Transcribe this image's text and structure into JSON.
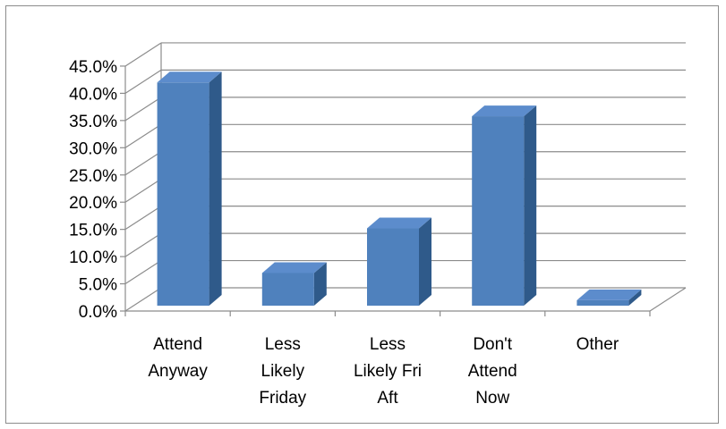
{
  "chart_data": {
    "type": "bar",
    "style": "3d-column",
    "categories": [
      [
        "Attend",
        "Anyway"
      ],
      [
        "Less",
        "Likely",
        "Friday"
      ],
      [
        "Less",
        "Likely Fri",
        "Aft"
      ],
      [
        "Don't",
        "Attend",
        "Now"
      ],
      [
        "Other"
      ]
    ],
    "values": [
      41.0,
      6.0,
      14.2,
      34.8,
      1.0
    ],
    "ylim": [
      0,
      45
    ],
    "ytick_step": 5,
    "y_tick_labels": [
      "0.0%",
      "5.0%",
      "10.0%",
      "15.0%",
      "20.0%",
      "25.0%",
      "30.0%",
      "35.0%",
      "40.0%",
      "45.0%"
    ],
    "grid": true,
    "legend": false,
    "title": "",
    "xlabel": "",
    "ylabel": "",
    "colors": {
      "bar_front": "#4f81bd",
      "bar_side": "#2f5a8a",
      "bar_top": "#5c8ccc",
      "grid": "#8c8c8c",
      "border": "#8c8c8c"
    }
  }
}
